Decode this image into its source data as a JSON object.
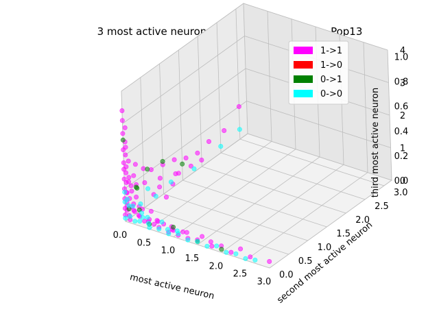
{
  "chart_data": {
    "type": "scatter",
    "projection": "3d",
    "title": "3 most active neurons of bl695-1_nno_white_Pop13",
    "xlabel": "most active neuron",
    "ylabel": "second most active neuron",
    "zlabel": "third most active neuron",
    "grid": true,
    "legend_position": "top-right",
    "xticks": [
      "0.0",
      "0.5",
      "1.0",
      "1.5",
      "2.0",
      "2.5",
      "3.0"
    ],
    "yticks": [
      "0.0",
      "0.5",
      "1.0",
      "1.5",
      "2.0",
      "2.5",
      "3.0"
    ],
    "zticks_overlap_a": [
      "0.0",
      "0.2",
      "0.4",
      "0.6",
      "0.8",
      "1.0"
    ],
    "zticks_overlap_b": [
      "0",
      "1",
      "2",
      "3",
      "4"
    ],
    "xlim": [
      0,
      3
    ],
    "ylim": [
      0,
      3.2
    ],
    "zlim": [
      0,
      4
    ],
    "series": [
      {
        "name": "1->1",
        "color": "#ff00ff",
        "points": [
          [
            0.0,
            0.0,
            3.4
          ],
          [
            0.0,
            0.0,
            3.1
          ],
          [
            0.0,
            0.0,
            2.7
          ],
          [
            0.0,
            0.05,
            2.4
          ],
          [
            0.0,
            0.0,
            2.2
          ],
          [
            0.0,
            0.05,
            2.0
          ],
          [
            0.0,
            0.0,
            1.8
          ],
          [
            0.0,
            0.0,
            1.6
          ],
          [
            0.0,
            0.05,
            1.45
          ],
          [
            0.0,
            0.0,
            1.3
          ],
          [
            0.0,
            0.05,
            1.15
          ],
          [
            0.0,
            0.0,
            1.0
          ],
          [
            0.0,
            0.05,
            0.85
          ],
          [
            0.0,
            0.0,
            0.7
          ],
          [
            0.0,
            0.05,
            0.55
          ],
          [
            0.0,
            0.0,
            0.4
          ],
          [
            0.0,
            0.05,
            0.3
          ],
          [
            0.0,
            0.0,
            0.2
          ],
          [
            0.05,
            0.0,
            2.9
          ],
          [
            0.05,
            0.0,
            2.3
          ],
          [
            0.05,
            0.0,
            1.7
          ],
          [
            0.05,
            0.05,
            1.2
          ],
          [
            0.05,
            0.0,
            0.9
          ],
          [
            0.05,
            0.0,
            0.5
          ],
          [
            0.1,
            0.0,
            1.9
          ],
          [
            0.1,
            0.0,
            1.4
          ],
          [
            0.1,
            0.05,
            1.1
          ],
          [
            0.1,
            0.0,
            0.75
          ],
          [
            0.1,
            0.05,
            0.45
          ],
          [
            0.15,
            0.0,
            1.0
          ],
          [
            0.2,
            0.0,
            1.5
          ],
          [
            0.2,
            0.05,
            0.8
          ],
          [
            0.25,
            0.0,
            1.25
          ],
          [
            0.3,
            0.0,
            0.6
          ],
          [
            0.0,
            0.3,
            1.5
          ],
          [
            0.0,
            0.5,
            1.2
          ],
          [
            0.0,
            0.7,
            1.0
          ],
          [
            0.0,
            1.0,
            0.9
          ],
          [
            0.0,
            1.3,
            0.8
          ],
          [
            0.0,
            1.6,
            0.6
          ],
          [
            0.0,
            1.9,
            0.5
          ],
          [
            0.0,
            2.2,
            0.6
          ],
          [
            0.0,
            2.6,
            0.6
          ],
          [
            0.0,
            3.0,
            1.0
          ],
          [
            0.1,
            0.4,
            0.9
          ],
          [
            0.1,
            0.8,
            0.7
          ],
          [
            0.1,
            1.2,
            0.5
          ],
          [
            0.1,
            1.6,
            0.4
          ],
          [
            0.2,
            0.5,
            0.5
          ],
          [
            0.2,
            1.0,
            0.4
          ],
          [
            0.3,
            0.7,
            0.3
          ],
          [
            0.0,
            0.9,
            0.3
          ],
          [
            0.0,
            1.4,
            0.3
          ],
          [
            0.0,
            2.0,
            0.2
          ],
          [
            0.2,
            0.0,
            0.4
          ],
          [
            0.3,
            0.0,
            0.3
          ],
          [
            0.4,
            0.0,
            0.2
          ],
          [
            0.5,
            0.0,
            0.3
          ],
          [
            0.6,
            0.0,
            0.2
          ],
          [
            0.7,
            0.0,
            0.15
          ],
          [
            0.8,
            0.0,
            0.3
          ],
          [
            0.9,
            0.0,
            0.1
          ],
          [
            1.0,
            0.0,
            0.2
          ],
          [
            1.1,
            0.0,
            0.1
          ],
          [
            1.2,
            0.0,
            0.25
          ],
          [
            1.3,
            0.0,
            0.1
          ],
          [
            1.5,
            0.0,
            0.15
          ],
          [
            1.6,
            0.0,
            0.3
          ],
          [
            1.8,
            0.0,
            0.1
          ],
          [
            2.0,
            0.0,
            0.2
          ],
          [
            2.2,
            0.0,
            0.1
          ],
          [
            2.4,
            0.0,
            0.3
          ],
          [
            2.6,
            0.0,
            0.15
          ],
          [
            3.0,
            0.0,
            0.2
          ],
          [
            0.4,
            0.1,
            0.1
          ],
          [
            0.6,
            0.1,
            0.2
          ],
          [
            0.9,
            0.1,
            0.1
          ],
          [
            1.2,
            0.1,
            0.15
          ],
          [
            1.7,
            0.1,
            0.1
          ],
          [
            0.5,
            0.2,
            0.1
          ],
          [
            0.8,
            0.2,
            0.05
          ],
          [
            0.3,
            0.3,
            0.2
          ],
          [
            0.2,
            0.2,
            0.3
          ],
          [
            0.1,
            0.1,
            0.5
          ],
          [
            0.1,
            0.1,
            0.3
          ],
          [
            0.2,
            0.1,
            0.2
          ],
          [
            0.0,
            0.1,
            0.1
          ],
          [
            0.1,
            0.0,
            0.1
          ]
        ]
      },
      {
        "name": "1->0",
        "color": "#ff0000",
        "points": []
      },
      {
        "name": "0->1",
        "color": "#008000",
        "points": [
          [
            0.0,
            0.0,
            2.5
          ],
          [
            0.0,
            1.0,
            1.0
          ],
          [
            0.0,
            0.6,
            1.1
          ],
          [
            0.3,
            0.0,
            0.5
          ],
          [
            1.0,
            0.0,
            0.3
          ],
          [
            0.0,
            1.5,
            0.5
          ],
          [
            0.1,
            0.2,
            0.9
          ],
          [
            2.0,
            0.0,
            0.1
          ],
          [
            0.0,
            0.1,
            0.3
          ],
          [
            0.5,
            0.0,
            0.15
          ],
          [
            0.0,
            0.3,
            0.8
          ],
          [
            1.5,
            0.0,
            0.1
          ]
        ]
      },
      {
        "name": "0->0",
        "color": "#00ffff",
        "points": [
          [
            0.0,
            0.0,
            0.1
          ],
          [
            0.0,
            0.2,
            0.3
          ],
          [
            0.0,
            0.4,
            0.2
          ],
          [
            0.0,
            0.6,
            0.5
          ],
          [
            0.0,
            0.8,
            0.1
          ],
          [
            0.0,
            1.2,
            0.2
          ],
          [
            0.0,
            1.8,
            0.1
          ],
          [
            0.0,
            2.5,
            0.2
          ],
          [
            0.1,
            0.0,
            0.2
          ],
          [
            0.2,
            0.0,
            0.1
          ],
          [
            0.3,
            0.0,
            0.15
          ],
          [
            0.5,
            0.0,
            0.05
          ],
          [
            0.7,
            0.0,
            0.1
          ],
          [
            0.9,
            0.0,
            0.05
          ],
          [
            1.1,
            0.0,
            0.15
          ],
          [
            1.3,
            0.0,
            0.05
          ],
          [
            1.5,
            0.0,
            0.1
          ],
          [
            1.7,
            0.0,
            0.05
          ],
          [
            1.9,
            0.0,
            0.15
          ],
          [
            2.1,
            0.0,
            0.05
          ],
          [
            2.3,
            0.0,
            0.1
          ],
          [
            2.5,
            0.0,
            0.05
          ],
          [
            2.7,
            0.0,
            0.1
          ],
          [
            0.2,
            0.2,
            0.05
          ],
          [
            0.4,
            0.1,
            0.05
          ],
          [
            0.6,
            0.2,
            0.1
          ],
          [
            0.1,
            0.3,
            0.05
          ],
          [
            0.3,
            0.2,
            0.1
          ],
          [
            0.8,
            0.1,
            0.05
          ],
          [
            1.0,
            0.1,
            0.1
          ],
          [
            0.0,
            0.0,
            0.6
          ],
          [
            0.0,
            0.0,
            0.9
          ],
          [
            0.0,
            0.1,
            0.4
          ],
          [
            0.05,
            0.0,
            0.7
          ],
          [
            0.0,
            3.0,
            0.3
          ]
        ]
      }
    ]
  }
}
